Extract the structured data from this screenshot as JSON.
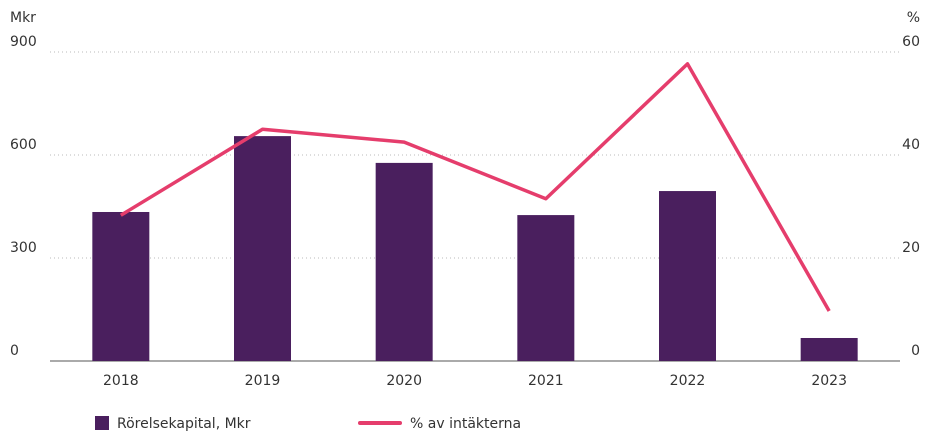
{
  "chart_data": {
    "type": "bar-line",
    "y_label": "Mkr",
    "y2_label": "%",
    "categories": [
      "2018",
      "2019",
      "2020",
      "2021",
      "2022",
      "2023"
    ],
    "series": [
      {
        "name": "Rörelsekapital, Mkr",
        "type": "bar",
        "color": "#4a1f5e",
        "values": [
          434,
          655,
          577,
          425,
          495,
          67
        ]
      },
      {
        "name": "% av intäkterna",
        "type": "line",
        "axis": "y2",
        "color": "#e53d6c",
        "values": [
          28.3,
          45,
          42.5,
          31.5,
          57.7,
          9.7
        ]
      }
    ],
    "ylim": [
      0,
      900
    ],
    "yticks": [
      0,
      300,
      600,
      900
    ],
    "y2lim": [
      0,
      60
    ],
    "y2ticks": [
      0,
      20,
      40,
      60
    ],
    "grid": true,
    "legend": "bottom"
  }
}
